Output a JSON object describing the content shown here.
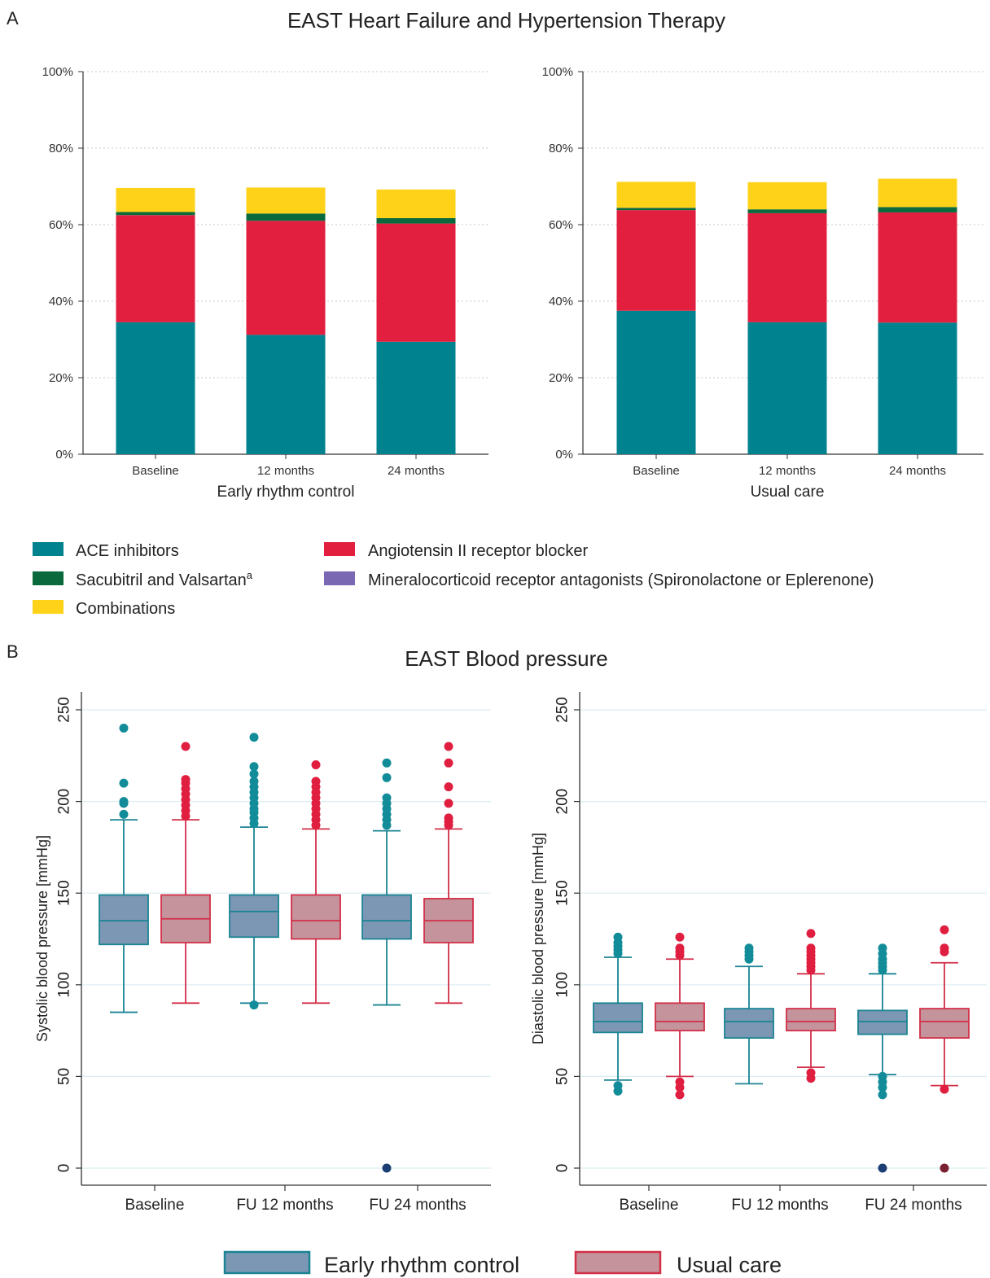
{
  "panel_a": {
    "letter": "A",
    "title": "EAST Heart Failure and Hypertension Therapy",
    "y_ticks": [
      "0%",
      "20%",
      "40%",
      "60%",
      "80%",
      "100%"
    ],
    "legend": [
      {
        "label": "ACE inhibitors",
        "color": "#00828f"
      },
      {
        "label": "Angiotensin II receptor blocker",
        "color": "#e21f3f"
      },
      {
        "label": "Sacubitril and Valsartan",
        "sup": "a",
        "color": "#0a6a3d"
      },
      {
        "label": "Mineralocorticoid receptor antagonists (Spironolactone or Eplerenone)",
        "color": "#7b68b3"
      },
      {
        "label": "Combinations",
        "color": "#ffd21a"
      }
    ]
  },
  "panel_b": {
    "letter": "B",
    "title": "EAST Blood pressure",
    "y_ticks": [
      "0",
      "50",
      "100",
      "150",
      "200",
      "250"
    ],
    "legend": [
      {
        "label": "Early rhythm control",
        "fill": "#7b97b4",
        "stroke": "#1a8493"
      },
      {
        "label": "Usual care",
        "fill": "#c4939b",
        "stroke": "#d22f49"
      }
    ]
  },
  "chart_data": [
    {
      "type": "bar",
      "stacked": true,
      "xlabel": "Early rhythm control",
      "categories": [
        "Baseline",
        "12 months",
        "24 months"
      ],
      "ylim": [
        0,
        100
      ],
      "unit": "%",
      "series": [
        {
          "name": "ACE inhibitors",
          "color": "#00828f",
          "values": [
            34.5,
            31.2,
            29.4
          ]
        },
        {
          "name": "Angiotensin II receptor blocker",
          "color": "#e21f3f",
          "values": [
            28.0,
            29.8,
            30.9
          ]
        },
        {
          "name": "Sacubitril and Valsartan",
          "color": "#0a6a3d",
          "values": [
            0.8,
            1.9,
            1.4
          ]
        },
        {
          "name": "Combinations",
          "color": "#ffd21a",
          "values": [
            6.3,
            6.8,
            7.5
          ]
        }
      ]
    },
    {
      "type": "bar",
      "stacked": true,
      "xlabel": "Usual care",
      "categories": [
        "Baseline",
        "12 months",
        "24 months"
      ],
      "ylim": [
        0,
        100
      ],
      "unit": "%",
      "series": [
        {
          "name": "ACE inhibitors",
          "color": "#00828f",
          "values": [
            37.5,
            34.5,
            34.4
          ]
        },
        {
          "name": "Angiotensin II receptor blocker",
          "color": "#e21f3f",
          "values": [
            26.3,
            28.5,
            28.8
          ]
        },
        {
          "name": "Sacubitril and Valsartan",
          "color": "#0a6a3d",
          "values": [
            0.6,
            1.0,
            1.4
          ]
        },
        {
          "name": "Combinations",
          "color": "#ffd21a",
          "values": [
            6.8,
            7.1,
            7.4
          ]
        }
      ]
    },
    {
      "type": "box",
      "ylabel": "Systolic blood pressure [mmHg]",
      "categories": [
        "Baseline",
        "FU 12 months",
        "FU 24 months"
      ],
      "ylim": [
        -10,
        260
      ],
      "series": [
        {
          "name": "Early rhythm control",
          "boxes": [
            {
              "lw": 85,
              "q1": 122,
              "med": 135,
              "q3": 149,
              "uw": 190,
              "outliers": [
                193,
                199,
                200,
                210,
                240
              ]
            },
            {
              "lw": 90,
              "q1": 126,
              "med": 140,
              "q3": 149,
              "uw": 186,
              "outliers": [
                89,
                188,
                191,
                194,
                196,
                199,
                202,
                205,
                208,
                211,
                215,
                219,
                235
              ]
            },
            {
              "lw": 89,
              "q1": 125,
              "med": 135,
              "q3": 149,
              "uw": 184,
              "outliers": [
                0,
                187,
                190,
                193,
                196,
                199,
                202,
                213,
                221
              ]
            }
          ]
        },
        {
          "name": "Usual care",
          "boxes": [
            {
              "lw": 90,
              "q1": 123,
              "med": 136,
              "q3": 149,
              "uw": 190,
              "outliers": [
                192,
                195,
                198,
                201,
                204,
                207,
                210,
                212,
                230
              ]
            },
            {
              "lw": 90,
              "q1": 125,
              "med": 135,
              "q3": 149,
              "uw": 185,
              "outliers": [
                187,
                190,
                193,
                196,
                199,
                202,
                205,
                208,
                211,
                220
              ]
            },
            {
              "lw": 90,
              "q1": 123,
              "med": 135,
              "q3": 147,
              "uw": 185,
              "outliers": [
                187,
                189,
                191,
                199,
                208,
                221,
                230
              ]
            }
          ]
        }
      ]
    },
    {
      "type": "box",
      "ylabel": "Diastolic blood pressure [mmHg]",
      "categories": [
        "Baseline",
        "FU 12 months",
        "FU 24 months"
      ],
      "ylim": [
        -10,
        260
      ],
      "series": [
        {
          "name": "Early rhythm control",
          "boxes": [
            {
              "lw": 48,
              "q1": 74,
              "med": 80,
              "q3": 90,
              "uw": 115,
              "outliers": [
                42,
                45,
                117,
                119,
                121,
                123,
                126
              ]
            },
            {
              "lw": 46,
              "q1": 71,
              "med": 80,
              "q3": 87,
              "uw": 110,
              "outliers": [
                114,
                116,
                118,
                120
              ]
            },
            {
              "lw": 51,
              "q1": 73,
              "med": 80,
              "q3": 86,
              "uw": 106,
              "outliers": [
                0,
                40,
                44,
                47,
                50,
                108,
                110,
                112,
                114,
                117,
                120
              ]
            }
          ]
        },
        {
          "name": "Usual care",
          "boxes": [
            {
              "lw": 50,
              "q1": 75,
              "med": 80,
              "q3": 90,
              "uw": 114,
              "outliers": [
                40,
                44,
                47,
                116,
                118,
                120,
                126
              ]
            },
            {
              "lw": 55,
              "q1": 75,
              "med": 80,
              "q3": 87,
              "uw": 106,
              "outliers": [
                49,
                52,
                108,
                110,
                112,
                114,
                116,
                118,
                120,
                128
              ]
            },
            {
              "lw": 45,
              "q1": 71,
              "med": 80,
              "q3": 87,
              "uw": 112,
              "outliers": [
                0,
                43,
                118,
                120,
                130
              ]
            }
          ]
        }
      ]
    }
  ]
}
